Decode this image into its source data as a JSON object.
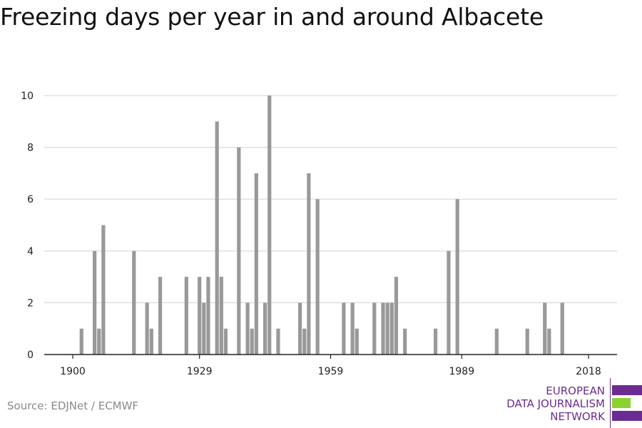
{
  "title": "Freezing days per year in and around Albacete",
  "source": "Source: EDJNet / ECMWF",
  "logo": {
    "lines": [
      "EUROPEAN",
      "DATA JOURNALISM",
      "NETWORK"
    ],
    "colors": {
      "purple": "#6a2c91",
      "green": "#8cd22f"
    }
  },
  "colors": {
    "bar": "#999999",
    "grid": "#d9d9d9",
    "axis": "#222222"
  },
  "chart_data": {
    "type": "bar",
    "title": "Freezing days per year in and around Albacete",
    "xlabel": "",
    "ylabel": "",
    "xlim": [
      1900,
      2018
    ],
    "ylim": [
      0,
      10
    ],
    "x_ticks": [
      1900,
      1929,
      1959,
      1989,
      2018
    ],
    "y_ticks": [
      0,
      2,
      4,
      6,
      8,
      10
    ],
    "grid": true,
    "x": [
      1902,
      1905,
      1906,
      1907,
      1914,
      1917,
      1918,
      1920,
      1926,
      1929,
      1930,
      1931,
      1933,
      1934,
      1935,
      1938,
      1940,
      1941,
      1942,
      1944,
      1945,
      1947,
      1952,
      1953,
      1954,
      1956,
      1962,
      1964,
      1965,
      1969,
      1971,
      1972,
      1973,
      1974,
      1976,
      1983,
      1986,
      1988,
      1997,
      2004,
      2008,
      2009,
      2012
    ],
    "values": [
      1,
      4,
      1,
      5,
      4,
      2,
      1,
      3,
      3,
      3,
      2,
      3,
      9,
      3,
      1,
      8,
      2,
      1,
      7,
      2,
      10,
      1,
      2,
      1,
      7,
      6,
      2,
      2,
      1,
      2,
      2,
      2,
      2,
      3,
      1,
      1,
      4,
      6,
      1,
      1,
      2,
      1,
      2
    ]
  }
}
